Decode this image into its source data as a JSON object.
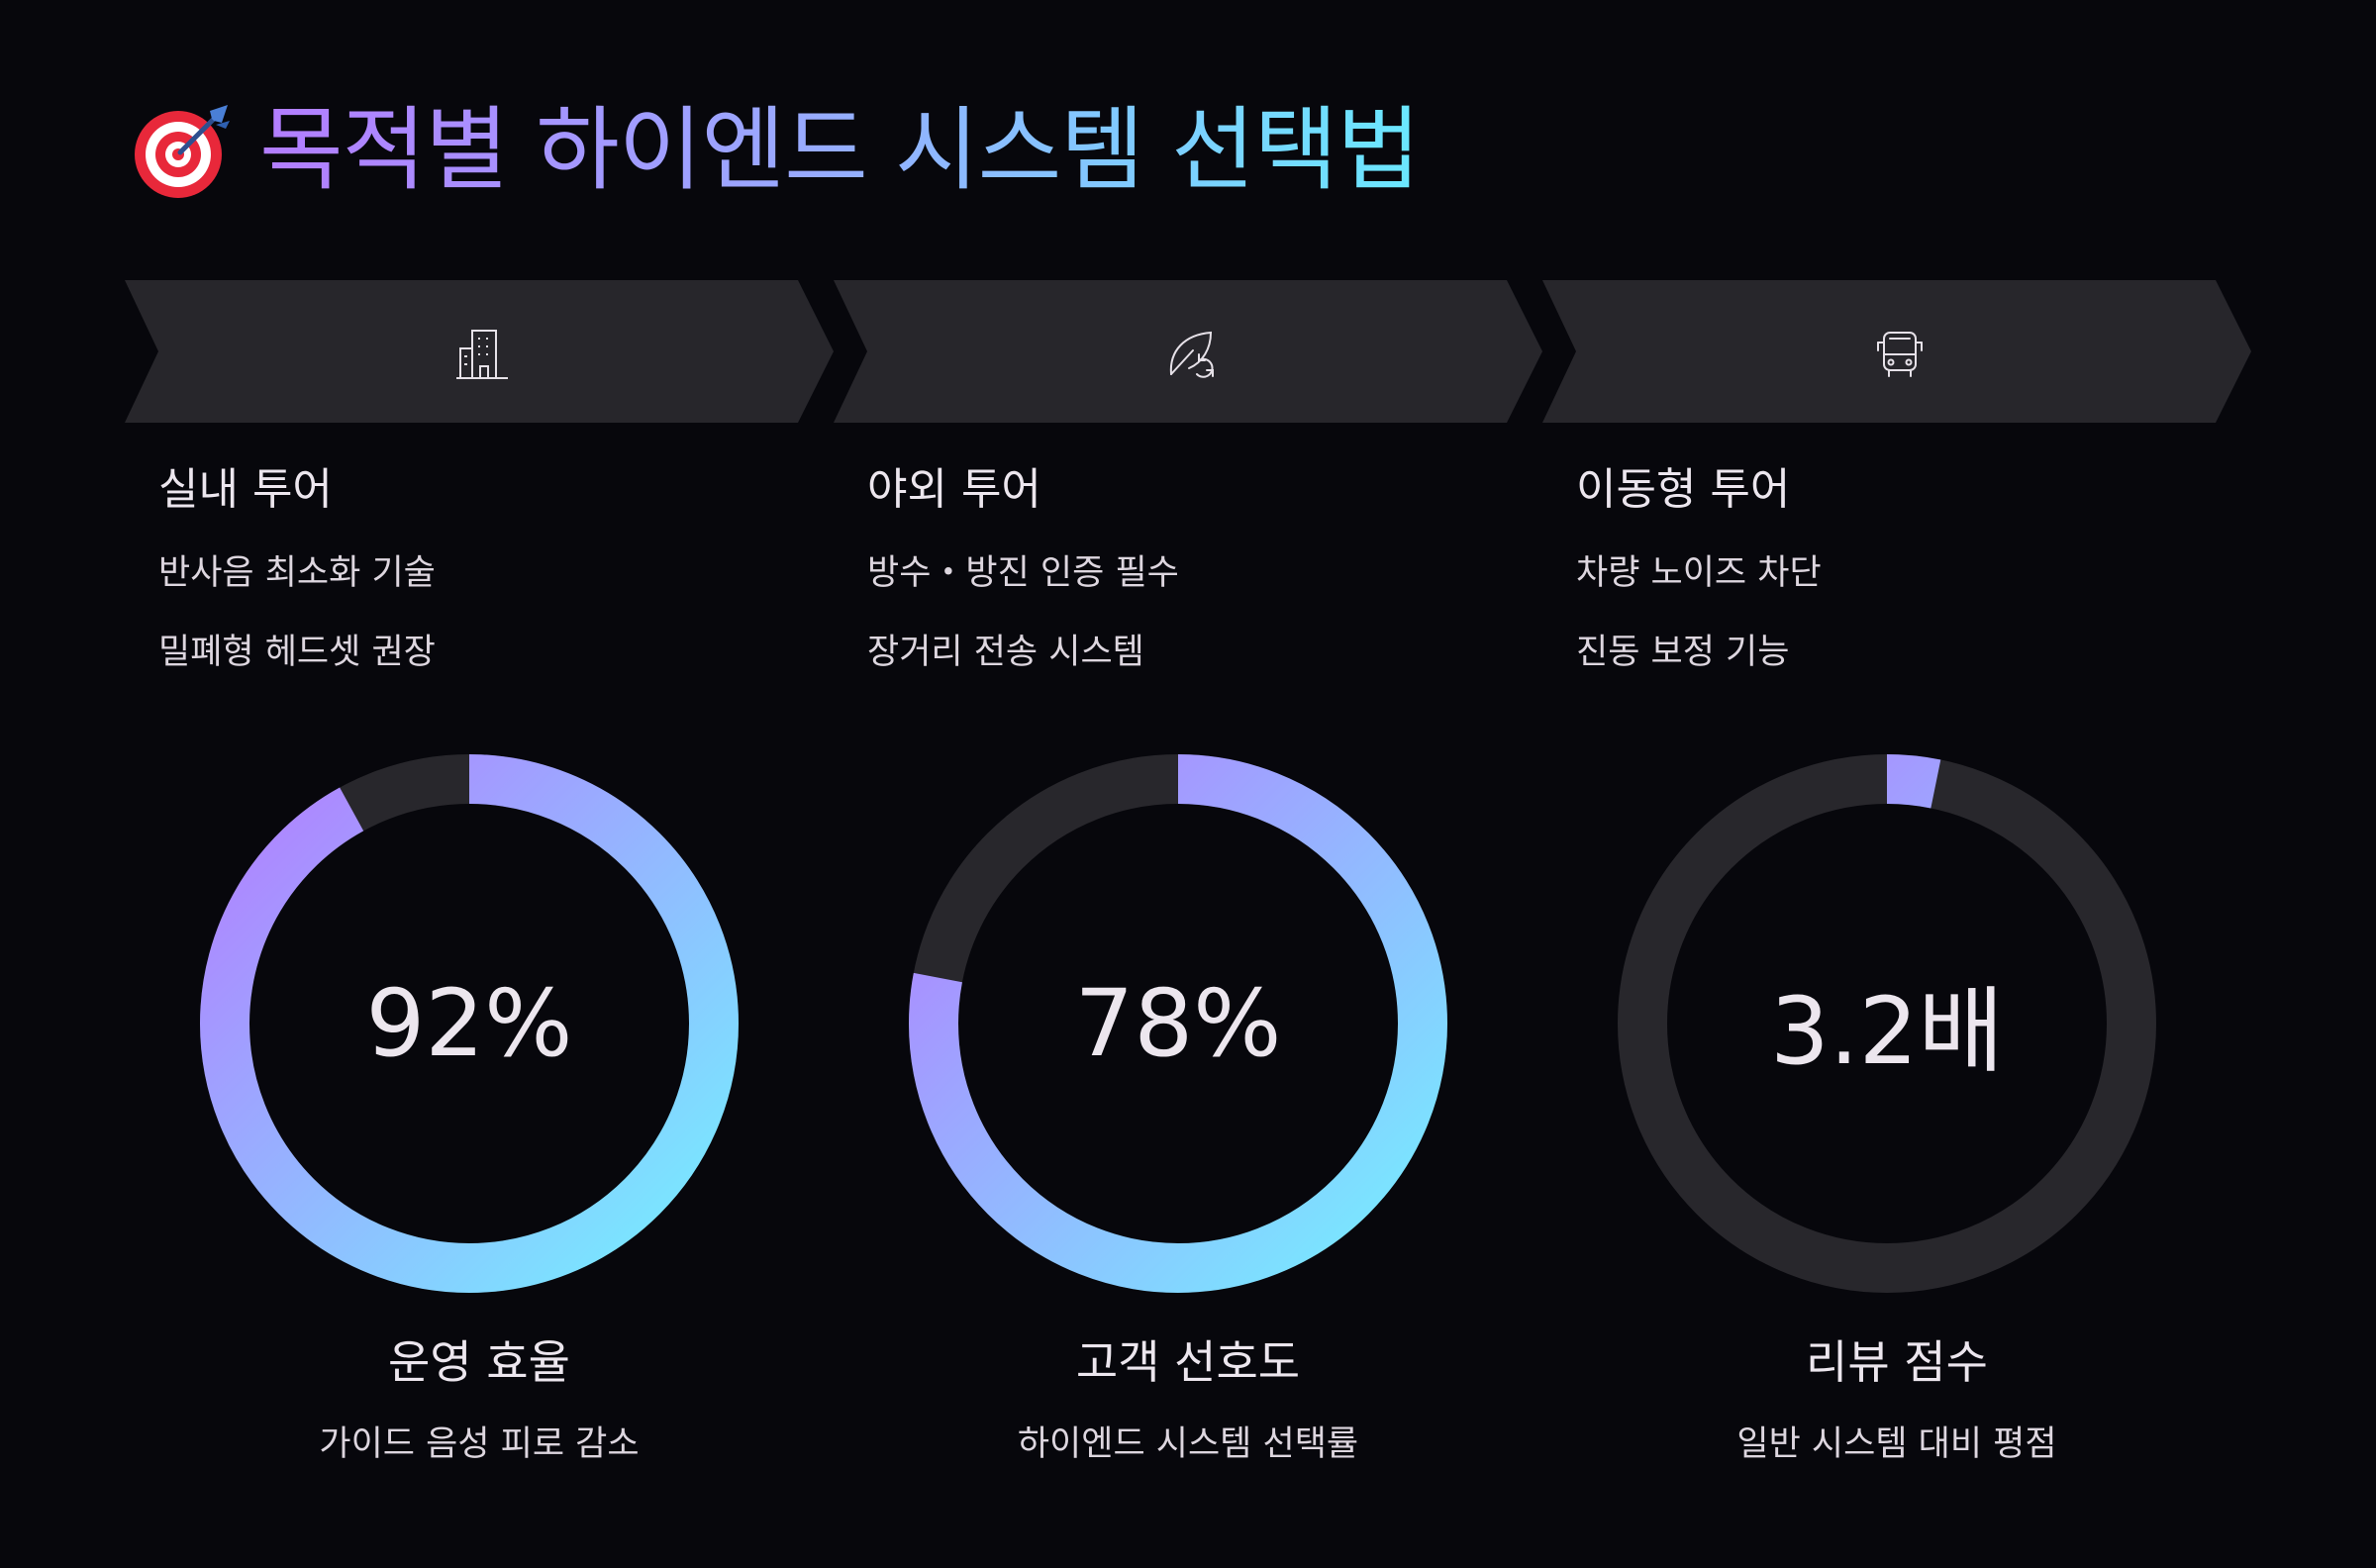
{
  "title": {
    "text": "목적별 하이엔드 시스템 선택법",
    "icon": "target-dart-icon"
  },
  "colors": {
    "background": "#07070c",
    "panel": "#27262b",
    "track": "#28272c",
    "gradient_start": "#b37dff",
    "gradient_end": "#74f0ff",
    "text": "#ece6ee"
  },
  "columns": [
    {
      "icon": "building-icon",
      "heading": "실내 투어",
      "line1": "반사음 최소화 기술",
      "line2": "밀폐형 헤드셋 권장",
      "metric": {
        "value_text": "92%",
        "fraction": 0.92,
        "label": "운영 효율",
        "sub": "가이드 음성 피로 감소"
      }
    },
    {
      "icon": "leaf-refresh-icon",
      "heading": "야외 투어",
      "line1": "방수・방진 인증 필수",
      "line2": "장거리 전송 시스템",
      "metric": {
        "value_text": "78%",
        "fraction": 0.78,
        "label": "고객 선호도",
        "sub": "하이엔드 시스템 선택률"
      }
    },
    {
      "icon": "bus-icon",
      "heading": "이동형 투어",
      "line1": "차량 노이즈 차단",
      "line2": "진동 보정 기능",
      "metric": {
        "value_text": "3.2배",
        "fraction": 0.032,
        "label": "리뷰 점수",
        "sub": "일반 시스템 대비 평점"
      }
    }
  ]
}
